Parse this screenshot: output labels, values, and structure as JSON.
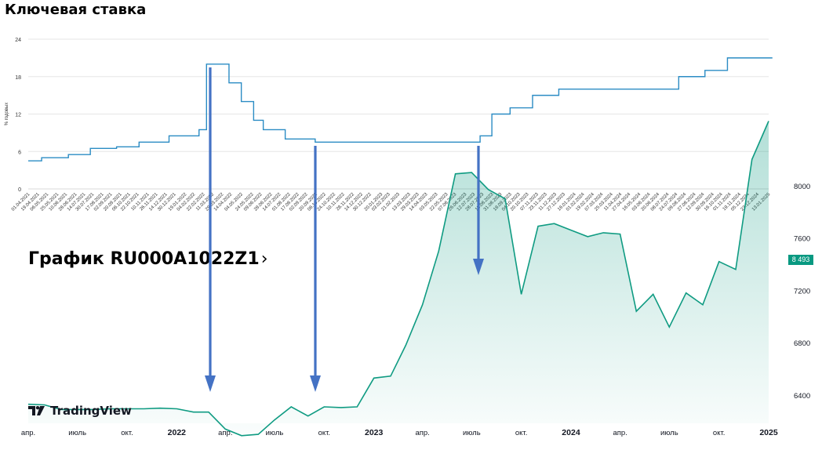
{
  "top_title": "Ключевая ставка",
  "bottom_title": "График RU000A1022Z1",
  "bottom_title_chevron": "›",
  "tradingview_label": "TradingView",
  "colors": {
    "rate_line": "#2b8cc4",
    "price_line": "#0f9b82",
    "price_fill": "#0f9b82",
    "arrow": "#4472c4",
    "badge": "#089981"
  },
  "chart_data": [
    {
      "type": "line",
      "title": "Ключевая ставка",
      "ylabel": "% годовых",
      "ylim": [
        0,
        24
      ],
      "yticks": [
        0,
        6,
        12,
        18,
        24
      ],
      "grid": true,
      "x_ticks": [
        "01.04.2021",
        "19.04.2021",
        "06.05.2021",
        "25.05.2021",
        "10.06.2021",
        "28.06.2021",
        "14.07.2021",
        "30.07.2021",
        "17.08.2021",
        "02.09.2021",
        "20.09.2021",
        "06.10.2021",
        "22.10.2021",
        "10.11.2021",
        "26.11.2021",
        "14.12.2021",
        "30.12.2021",
        "19.01.2022",
        "04.02.2022",
        "22.02.2022",
        "11.03.2022",
        "29.03.2022",
        "14.04.2022",
        "04.05.2022",
        "24.05.2022",
        "09.06.2022",
        "28.06.2022",
        "14.07.2022",
        "01.08.2022",
        "17.08.2022",
        "02.09.2022",
        "20.09.2022",
        "06.10.2022",
        "24.10.2022",
        "10.11.2022",
        "28.11.2022",
        "14.12.2022",
        "30.12.2022",
        "20.01.2023",
        "03.02.2023",
        "21.02.2023",
        "13.03.2023",
        "29.03.2023",
        "14.04.2023",
        "03.05.2023",
        "22.05.2023",
        "07.06.2023",
        "26.06.2023",
        "12.07.2023",
        "28.07.2023",
        "15.08.2023",
        "31.08.2023",
        "18.09.2023",
        "04.10.2023",
        "20.10.2023",
        "07.11.2023",
        "23.11.2023",
        "11.12.2023",
        "27.12.2023",
        "16.01.2024",
        "01.02.2024",
        "19.02.2024",
        "07.03.2024",
        "25.03.2024",
        "11.04.2024",
        "27.04.2024",
        "16.05.2024",
        "03.06.2024",
        "20.06.2024",
        "08.07.2024",
        "24.07.2024",
        "09.08.2024",
        "27.08.2024",
        "12.09.2024",
        "30.09.2024",
        "16.10.2024",
        "01.11.2024",
        "19.11.2024",
        "05.12.2024",
        "23.12.2024",
        "13.01.2025"
      ],
      "steps": [
        {
          "date": "01.04.2021",
          "value": 4.5
        },
        {
          "date": "26.04.2021",
          "value": 5.0
        },
        {
          "date": "15.06.2021",
          "value": 5.5
        },
        {
          "date": "26.07.2021",
          "value": 6.5
        },
        {
          "date": "13.09.2021",
          "value": 6.75
        },
        {
          "date": "25.10.2021",
          "value": 7.5
        },
        {
          "date": "20.12.2021",
          "value": 8.5
        },
        {
          "date": "14.02.2022",
          "value": 9.5
        },
        {
          "date": "28.02.2022",
          "value": 20.0
        },
        {
          "date": "11.04.2022",
          "value": 17.0
        },
        {
          "date": "04.05.2022",
          "value": 14.0
        },
        {
          "date": "27.05.2022",
          "value": 11.0
        },
        {
          "date": "14.06.2022",
          "value": 9.5
        },
        {
          "date": "25.07.2022",
          "value": 8.0
        },
        {
          "date": "19.09.2022",
          "value": 7.5
        },
        {
          "date": "24.07.2023",
          "value": 8.5
        },
        {
          "date": "15.08.2023",
          "value": 12.0
        },
        {
          "date": "18.09.2023",
          "value": 13.0
        },
        {
          "date": "30.10.2023",
          "value": 15.0
        },
        {
          "date": "18.12.2023",
          "value": 16.0
        },
        {
          "date": "29.07.2024",
          "value": 18.0
        },
        {
          "date": "16.09.2024",
          "value": 19.0
        },
        {
          "date": "28.10.2024",
          "value": 21.0
        },
        {
          "date": "20.01.2025",
          "value": 21.0
        }
      ]
    },
    {
      "type": "area",
      "title": "График RU000A1022Z1",
      "ylim": [
        6100,
        8600
      ],
      "yticks": [
        6400,
        6800,
        7200,
        7600,
        8000
      ],
      "last_value_label": "8 493",
      "x_tick_labels": [
        {
          "label": "апр.",
          "date": "2021-04-01"
        },
        {
          "label": "июль",
          "date": "2021-07-01"
        },
        {
          "label": "окт.",
          "date": "2021-10-01"
        },
        {
          "label": "2022",
          "date": "2022-01-01"
        },
        {
          "label": "апр.",
          "date": "2022-04-01"
        },
        {
          "label": "июль",
          "date": "2022-07-01"
        },
        {
          "label": "окт.",
          "date": "2022-10-01"
        },
        {
          "label": "2023",
          "date": "2023-01-01"
        },
        {
          "label": "апр.",
          "date": "2023-04-01"
        },
        {
          "label": "июль",
          "date": "2023-07-01"
        },
        {
          "label": "окт.",
          "date": "2023-10-01"
        },
        {
          "label": "2024",
          "date": "2024-01-01"
        },
        {
          "label": "апр.",
          "date": "2024-04-01"
        },
        {
          "label": "июль",
          "date": "2024-07-01"
        },
        {
          "label": "окт.",
          "date": "2024-10-01"
        },
        {
          "label": "2025",
          "date": "2025-01-01"
        }
      ],
      "points": [
        {
          "date": "2021-04-01",
          "value": 6330
        },
        {
          "date": "2021-05-01",
          "value": 6325
        },
        {
          "date": "2021-06-01",
          "value": 6290
        },
        {
          "date": "2021-07-01",
          "value": 6290
        },
        {
          "date": "2021-08-01",
          "value": 6290
        },
        {
          "date": "2021-09-01",
          "value": 6295
        },
        {
          "date": "2021-10-01",
          "value": 6295
        },
        {
          "date": "2021-11-01",
          "value": 6295
        },
        {
          "date": "2021-12-01",
          "value": 6300
        },
        {
          "date": "2022-01-01",
          "value": 6295
        },
        {
          "date": "2022-02-01",
          "value": 6270
        },
        {
          "date": "2022-03-01",
          "value": 6270
        },
        {
          "date": "2022-04-01",
          "value": 6140
        },
        {
          "date": "2022-05-01",
          "value": 6090
        },
        {
          "date": "2022-06-01",
          "value": 6100
        },
        {
          "date": "2022-07-01",
          "value": 6210
        },
        {
          "date": "2022-08-01",
          "value": 6310
        },
        {
          "date": "2022-09-01",
          "value": 6240
        },
        {
          "date": "2022-10-01",
          "value": 6310
        },
        {
          "date": "2022-11-01",
          "value": 6305
        },
        {
          "date": "2022-12-01",
          "value": 6310
        },
        {
          "date": "2023-01-01",
          "value": 6530
        },
        {
          "date": "2023-02-01",
          "value": 6545
        },
        {
          "date": "2023-03-01",
          "value": 6780
        },
        {
          "date": "2023-04-01",
          "value": 7090
        },
        {
          "date": "2023-05-01",
          "value": 7500
        },
        {
          "date": "2023-06-01",
          "value": 8090
        },
        {
          "date": "2023-07-01",
          "value": 8100
        },
        {
          "date": "2023-08-01",
          "value": 7970
        },
        {
          "date": "2023-09-01",
          "value": 7900
        },
        {
          "date": "2023-10-01",
          "value": 7170
        },
        {
          "date": "2023-11-01",
          "value": 7690
        },
        {
          "date": "2023-12-01",
          "value": 7710
        },
        {
          "date": "2024-01-01",
          "value": 7660
        },
        {
          "date": "2024-02-01",
          "value": 7610
        },
        {
          "date": "2024-03-01",
          "value": 7640
        },
        {
          "date": "2024-04-01",
          "value": 7630
        },
        {
          "date": "2024-05-01",
          "value": 7040
        },
        {
          "date": "2024-06-01",
          "value": 7170
        },
        {
          "date": "2024-07-01",
          "value": 6920
        },
        {
          "date": "2024-08-01",
          "value": 7180
        },
        {
          "date": "2024-09-01",
          "value": 7090
        },
        {
          "date": "2024-10-01",
          "value": 7420
        },
        {
          "date": "2024-11-01",
          "value": 7360
        },
        {
          "date": "2024-12-01",
          "value": 8200
        },
        {
          "date": "2025-01-01",
          "value": 8493
        }
      ]
    }
  ]
}
